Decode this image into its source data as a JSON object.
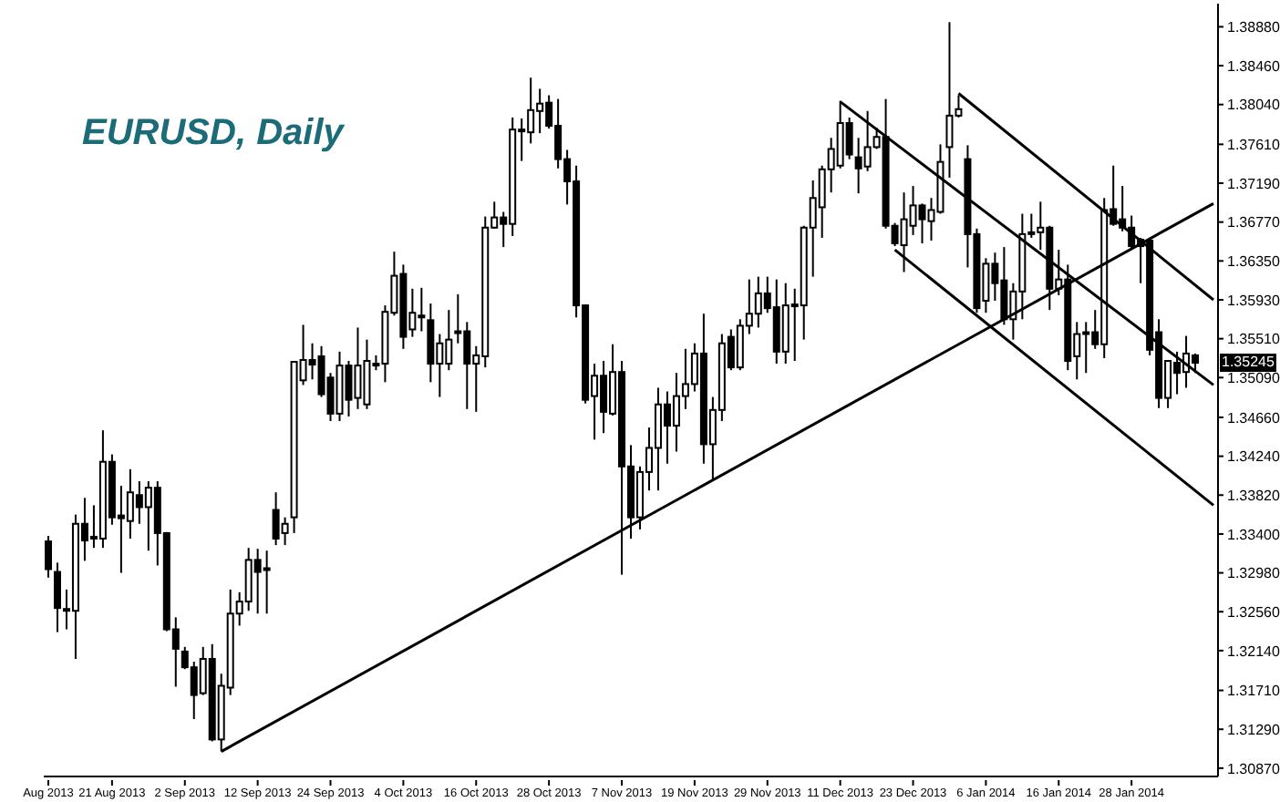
{
  "chart_data": {
    "type": "candlestick",
    "title": "EURUSD, Daily",
    "color": "#000000",
    "categories": [
      "Aug 2013",
      null,
      null,
      null,
      null,
      null,
      null,
      "21 Aug 2013",
      null,
      null,
      null,
      null,
      null,
      null,
      null,
      "2 Sep 2013",
      null,
      null,
      null,
      null,
      null,
      null,
      null,
      "12 Sep 2013",
      null,
      null,
      null,
      null,
      null,
      null,
      null,
      "24 Sep 2013",
      null,
      null,
      null,
      null,
      null,
      null,
      null,
      "4 Oct 2013",
      null,
      null,
      null,
      null,
      null,
      null,
      null,
      "16 Oct 2013",
      null,
      null,
      null,
      null,
      null,
      null,
      null,
      "28 Oct 2013",
      null,
      null,
      null,
      null,
      null,
      null,
      null,
      "7 Nov 2013",
      null,
      null,
      null,
      null,
      null,
      null,
      null,
      "19 Nov 2013",
      null,
      null,
      null,
      null,
      null,
      null,
      null,
      "29 Nov 2013",
      null,
      null,
      null,
      null,
      null,
      null,
      null,
      "11 Dec 2013",
      null,
      null,
      null,
      null,
      null,
      null,
      null,
      "23 Dec 2013",
      null,
      null,
      null,
      null,
      null,
      null,
      null,
      "6 Jan 2014",
      null,
      null,
      null,
      null,
      null,
      null,
      null,
      "16 Jan 2014",
      null,
      null,
      null,
      null,
      null,
      null,
      null,
      "28 Jan 2014",
      null,
      null,
      null,
      null,
      null,
      null,
      null,
      null,
      null
    ],
    "ohlc": [
      [
        1.3332,
        1.3338,
        1.3293,
        1.3302
      ],
      [
        1.3299,
        1.3309,
        1.3234,
        1.326
      ],
      [
        1.3259,
        1.328,
        1.3237,
        1.3257
      ],
      [
        1.3257,
        1.3361,
        1.3205,
        1.3351
      ],
      [
        1.3351,
        1.3379,
        1.3311,
        1.3333
      ],
      [
        1.3335,
        1.3371,
        1.3325,
        1.3337
      ],
      [
        1.3335,
        1.3452,
        1.3325,
        1.3418
      ],
      [
        1.3418,
        1.3426,
        1.335,
        1.3358
      ],
      [
        1.336,
        1.3392,
        1.3298,
        1.3357
      ],
      [
        1.3354,
        1.341,
        1.3335,
        1.3385
      ],
      [
        1.3382,
        1.3397,
        1.3351,
        1.3369
      ],
      [
        1.3369,
        1.3397,
        1.3322,
        1.339
      ],
      [
        1.339,
        1.3397,
        1.3306,
        1.3341
      ],
      [
        1.3341,
        1.3342,
        1.3235,
        1.3237
      ],
      [
        1.3237,
        1.325,
        1.3175,
        1.3216
      ],
      [
        1.3213,
        1.3218,
        1.3194,
        1.3196
      ],
      [
        1.3196,
        1.3202,
        1.314,
        1.3166
      ],
      [
        1.3168,
        1.3218,
        1.3166,
        1.3205
      ],
      [
        1.3205,
        1.3221,
        1.3116,
        1.3118
      ],
      [
        1.3118,
        1.3189,
        1.3105,
        1.3176
      ],
      [
        1.3174,
        1.328,
        1.3166,
        1.3254
      ],
      [
        1.3254,
        1.3277,
        1.3241,
        1.3267
      ],
      [
        1.3267,
        1.3325,
        1.3257,
        1.3312
      ],
      [
        1.3312,
        1.3324,
        1.3254,
        1.3299
      ],
      [
        1.3303,
        1.3322,
        1.3254,
        1.3302
      ],
      [
        1.3366,
        1.3385,
        1.3328,
        1.3335
      ],
      [
        1.3341,
        1.3358,
        1.3328,
        1.3351
      ],
      [
        1.3358,
        1.3527,
        1.3341,
        1.3526
      ],
      [
        1.3506,
        1.3566,
        1.3501,
        1.3528
      ],
      [
        1.3528,
        1.3546,
        1.3507,
        1.3523
      ],
      [
        1.3532,
        1.3543,
        1.3488,
        1.3491
      ],
      [
        1.3509,
        1.3514,
        1.3462,
        1.347
      ],
      [
        1.347,
        1.3537,
        1.3462,
        1.3522
      ],
      [
        1.3522,
        1.3527,
        1.3467,
        1.3485
      ],
      [
        1.3487,
        1.3563,
        1.3475,
        1.3522
      ],
      [
        1.348,
        1.355,
        1.3475,
        1.3527
      ],
      [
        1.3523,
        1.3533,
        1.3517,
        1.3524
      ],
      [
        1.3524,
        1.3587,
        1.3504,
        1.358
      ],
      [
        1.3579,
        1.3645,
        1.3576,
        1.3619
      ],
      [
        1.3621,
        1.3631,
        1.354,
        1.3553
      ],
      [
        1.3561,
        1.3605,
        1.3553,
        1.3579
      ],
      [
        1.3576,
        1.3606,
        1.3559,
        1.3575
      ],
      [
        1.3571,
        1.3589,
        1.3504,
        1.3524
      ],
      [
        1.3524,
        1.3556,
        1.3488,
        1.3546
      ],
      [
        1.3524,
        1.3582,
        1.3517,
        1.355
      ],
      [
        1.3558,
        1.3599,
        1.3546,
        1.3559
      ],
      [
        1.3559,
        1.3569,
        1.3475,
        1.3524
      ],
      [
        1.3524,
        1.3543,
        1.3472,
        1.3533
      ],
      [
        1.3532,
        1.3683,
        1.352,
        1.3671
      ],
      [
        1.3671,
        1.3699,
        1.367,
        1.3682
      ],
      [
        1.3682,
        1.3688,
        1.365,
        1.3675
      ],
      [
        1.3675,
        1.379,
        1.3662,
        1.3777
      ],
      [
        1.3776,
        1.3789,
        1.3743,
        1.3777
      ],
      [
        1.3774,
        1.3833,
        1.3762,
        1.3798
      ],
      [
        1.3797,
        1.3821,
        1.3773,
        1.3805
      ],
      [
        1.3806,
        1.3814,
        1.3778,
        1.3781
      ],
      [
        1.3781,
        1.381,
        1.3735,
        1.3745
      ],
      [
        1.3745,
        1.3755,
        1.3696,
        1.3721
      ],
      [
        1.3721,
        1.3738,
        1.3574,
        1.3587
      ],
      [
        1.3587,
        1.3588,
        1.3481,
        1.3485
      ],
      [
        1.3489,
        1.3524,
        1.3442,
        1.3511
      ],
      [
        1.3511,
        1.3527,
        1.3449,
        1.3472
      ],
      [
        1.347,
        1.3545,
        1.3468,
        1.3515
      ],
      [
        1.3515,
        1.3527,
        1.3296,
        1.3413
      ],
      [
        1.3413,
        1.3436,
        1.3335,
        1.3358
      ],
      [
        1.3358,
        1.3413,
        1.3345,
        1.3407
      ],
      [
        1.3407,
        1.3455,
        1.3387,
        1.3433
      ],
      [
        1.3433,
        1.3498,
        1.3387,
        1.348
      ],
      [
        1.348,
        1.3494,
        1.3416,
        1.3457
      ],
      [
        1.3457,
        1.3514,
        1.3429,
        1.3489
      ],
      [
        1.3489,
        1.354,
        1.3475,
        1.3502
      ],
      [
        1.3502,
        1.3546,
        1.3494,
        1.3535
      ],
      [
        1.3535,
        1.3578,
        1.3416,
        1.3437
      ],
      [
        1.3437,
        1.3488,
        1.3397,
        1.3474
      ],
      [
        1.3474,
        1.3556,
        1.3462,
        1.3546
      ],
      [
        1.3553,
        1.3561,
        1.3517,
        1.352
      ],
      [
        1.352,
        1.3572,
        1.3517,
        1.3565
      ],
      [
        1.3565,
        1.3615,
        1.3556,
        1.3578
      ],
      [
        1.3578,
        1.3618,
        1.3563,
        1.36
      ],
      [
        1.36,
        1.3618,
        1.3579,
        1.3584
      ],
      [
        1.3585,
        1.3615,
        1.3524,
        1.3537
      ],
      [
        1.3537,
        1.3611,
        1.3524,
        1.3587
      ],
      [
        1.3587,
        1.3605,
        1.3527,
        1.3588
      ],
      [
        1.3587,
        1.3673,
        1.355,
        1.3671
      ],
      [
        1.3671,
        1.3722,
        1.3618,
        1.3703
      ],
      [
        1.3693,
        1.3738,
        1.366,
        1.3734
      ],
      [
        1.3734,
        1.3768,
        1.3709,
        1.3756
      ],
      [
        1.3738,
        1.3808,
        1.3735,
        1.3784
      ],
      [
        1.3784,
        1.379,
        1.3745,
        1.375
      ],
      [
        1.3747,
        1.3768,
        1.3708,
        1.3735
      ],
      [
        1.3737,
        1.3797,
        1.3732,
        1.3758
      ],
      [
        1.3758,
        1.3779,
        1.3756,
        1.3769
      ],
      [
        1.3769,
        1.381,
        1.367,
        1.3673
      ],
      [
        1.3673,
        1.3676,
        1.3651,
        1.3654
      ],
      [
        1.3652,
        1.3709,
        1.3623,
        1.368
      ],
      [
        1.3673,
        1.3716,
        1.3663,
        1.3695
      ],
      [
        1.3695,
        1.3697,
        1.3654,
        1.368
      ],
      [
        1.3678,
        1.3703,
        1.3657,
        1.369
      ],
      [
        1.3688,
        1.3761,
        1.3686,
        1.3742
      ],
      [
        1.3758,
        1.3893,
        1.3725,
        1.3792
      ],
      [
        1.3792,
        1.3814,
        1.379,
        1.3799
      ],
      [
        1.3745,
        1.376,
        1.3628,
        1.3664
      ],
      [
        1.3664,
        1.367,
        1.3579,
        1.3584
      ],
      [
        1.3592,
        1.3638,
        1.3579,
        1.3632
      ],
      [
        1.3632,
        1.3644,
        1.3592,
        1.3611
      ],
      [
        1.3614,
        1.365,
        1.3566,
        1.3572
      ],
      [
        1.3572,
        1.3611,
        1.355,
        1.3602
      ],
      [
        1.3602,
        1.3686,
        1.3572,
        1.3664
      ],
      [
        1.3665,
        1.3686,
        1.366,
        1.3666
      ],
      [
        1.3666,
        1.3699,
        1.3647,
        1.3671
      ],
      [
        1.3671,
        1.3673,
        1.3582,
        1.3605
      ],
      [
        1.3605,
        1.3647,
        1.3598,
        1.3615
      ],
      [
        1.3615,
        1.3631,
        1.3517,
        1.3527
      ],
      [
        1.3532,
        1.3569,
        1.3507,
        1.3556
      ],
      [
        1.3557,
        1.3569,
        1.3514,
        1.3558
      ],
      [
        1.3558,
        1.3582,
        1.354,
        1.3545
      ],
      [
        1.3545,
        1.3703,
        1.353,
        1.369
      ],
      [
        1.3691,
        1.3738,
        1.3673,
        1.3675
      ],
      [
        1.368,
        1.3716,
        1.3667,
        1.3671
      ],
      [
        1.3671,
        1.3684,
        1.3647,
        1.3651
      ],
      [
        1.3658,
        1.366,
        1.3611,
        1.3651
      ],
      [
        1.3657,
        1.366,
        1.3533,
        1.3539
      ],
      [
        1.3558,
        1.3572,
        1.3476,
        1.3487
      ],
      [
        1.3487,
        1.3528,
        1.3476,
        1.3527
      ],
      [
        1.3525,
        1.3537,
        1.3491,
        1.3514
      ],
      [
        1.3515,
        1.3554,
        1.3498,
        1.3535
      ],
      [
        1.3533,
        1.3535,
        1.3514,
        1.3525
      ],
      null,
      null
    ],
    "series": [
      {
        "type": "line",
        "color": "#000000",
        "values": [
          null,
          null,
          null,
          null,
          null,
          null,
          null,
          null,
          null,
          null,
          null,
          null,
          null,
          null,
          null,
          null,
          null,
          null,
          null,
          1.3105,
          null,
          null,
          null,
          null,
          null,
          null,
          null,
          null,
          null,
          null,
          null,
          null,
          null,
          null,
          null,
          null,
          null,
          null,
          null,
          null,
          null,
          null,
          null,
          null,
          null,
          null,
          null,
          null,
          null,
          null,
          null,
          null,
          null,
          null,
          null,
          null,
          null,
          null,
          null,
          null,
          null,
          null,
          null,
          null,
          null,
          null,
          null,
          null,
          null,
          null,
          null,
          null,
          null,
          null,
          null,
          null,
          null,
          null,
          null,
          null,
          null,
          null,
          null,
          null,
          null,
          null,
          null,
          null,
          null,
          null,
          null,
          null,
          null,
          null,
          null,
          null,
          null,
          null,
          null,
          null,
          null,
          null,
          null,
          null,
          null,
          null,
          null,
          null,
          null,
          null,
          null,
          null,
          null,
          null,
          null,
          null,
          null,
          null,
          null,
          null,
          null,
          null,
          null,
          null,
          null,
          null,
          null,
          null,
          1.3697
        ]
      },
      {
        "type": "line",
        "color": "#000000",
        "values": [
          null,
          null,
          null,
          null,
          null,
          null,
          null,
          null,
          null,
          null,
          null,
          null,
          null,
          null,
          null,
          null,
          null,
          null,
          null,
          null,
          null,
          null,
          null,
          null,
          null,
          null,
          null,
          null,
          null,
          null,
          null,
          null,
          null,
          null,
          null,
          null,
          null,
          null,
          null,
          null,
          null,
          null,
          null,
          null,
          null,
          null,
          null,
          null,
          null,
          null,
          null,
          null,
          null,
          null,
          null,
          null,
          null,
          null,
          null,
          null,
          null,
          null,
          null,
          null,
          null,
          null,
          null,
          null,
          null,
          null,
          null,
          null,
          null,
          null,
          null,
          null,
          null,
          null,
          null,
          null,
          null,
          null,
          null,
          null,
          null,
          null,
          null,
          null,
          null,
          null,
          null,
          null,
          null,
          null,
          null,
          null,
          null,
          null,
          null,
          null,
          1.3816,
          null,
          null,
          null,
          null,
          null,
          null,
          null,
          null,
          null,
          null,
          null,
          null,
          null,
          null,
          null,
          null,
          null,
          null,
          null,
          null,
          null,
          null,
          null,
          null,
          null,
          null,
          null,
          1.3593
        ]
      },
      {
        "type": "line",
        "color": "#000000",
        "values": [
          null,
          null,
          null,
          null,
          null,
          null,
          null,
          null,
          null,
          null,
          null,
          null,
          null,
          null,
          null,
          null,
          null,
          null,
          null,
          null,
          null,
          null,
          null,
          null,
          null,
          null,
          null,
          null,
          null,
          null,
          null,
          null,
          null,
          null,
          null,
          null,
          null,
          null,
          null,
          null,
          null,
          null,
          null,
          null,
          null,
          null,
          null,
          null,
          null,
          null,
          null,
          null,
          null,
          null,
          null,
          null,
          null,
          null,
          null,
          null,
          null,
          null,
          null,
          null,
          null,
          null,
          null,
          null,
          null,
          null,
          null,
          null,
          null,
          null,
          null,
          null,
          null,
          null,
          null,
          null,
          null,
          null,
          null,
          null,
          null,
          null,
          null,
          1.3807,
          null,
          null,
          null,
          null,
          null,
          null,
          null,
          null,
          null,
          null,
          null,
          null,
          null,
          null,
          null,
          null,
          null,
          null,
          null,
          null,
          null,
          null,
          null,
          null,
          null,
          null,
          null,
          null,
          null,
          null,
          null,
          null,
          null,
          null,
          null,
          null,
          null,
          null,
          null,
          null,
          1.3501
        ]
      },
      {
        "type": "line",
        "color": "#000000",
        "values": [
          null,
          null,
          null,
          null,
          null,
          null,
          null,
          null,
          null,
          null,
          null,
          null,
          null,
          null,
          null,
          null,
          null,
          null,
          null,
          null,
          null,
          null,
          null,
          null,
          null,
          null,
          null,
          null,
          null,
          null,
          null,
          null,
          null,
          null,
          null,
          null,
          null,
          null,
          null,
          null,
          null,
          null,
          null,
          null,
          null,
          null,
          null,
          null,
          null,
          null,
          null,
          null,
          null,
          null,
          null,
          null,
          null,
          null,
          null,
          null,
          null,
          null,
          null,
          null,
          null,
          null,
          null,
          null,
          null,
          null,
          null,
          null,
          null,
          null,
          null,
          null,
          null,
          null,
          null,
          null,
          null,
          null,
          null,
          null,
          null,
          null,
          null,
          null,
          null,
          null,
          null,
          null,
          null,
          1.3647,
          null,
          null,
          null,
          null,
          null,
          null,
          null,
          null,
          null,
          null,
          null,
          null,
          null,
          null,
          null,
          null,
          null,
          null,
          null,
          null,
          null,
          null,
          null,
          null,
          null,
          null,
          null,
          null,
          null,
          null,
          null,
          null,
          null,
          null,
          1.3371
        ]
      }
    ],
    "ylim": [
      1.3078,
      1.3913
    ],
    "yticks": [
      {
        "value": 1.3888,
        "label": "1.38880"
      },
      {
        "value": 1.3846,
        "label": "1.38460"
      },
      {
        "value": 1.3804,
        "label": "1.38040"
      },
      {
        "value": 1.3761,
        "label": "1.37610"
      },
      {
        "value": 1.3719,
        "label": "1.37190"
      },
      {
        "value": 1.3677,
        "label": "1.36770"
      },
      {
        "value": 1.3635,
        "label": "1.36350"
      },
      {
        "value": 1.3593,
        "label": "1.35930"
      },
      {
        "value": 1.3551,
        "label": "1.35510"
      },
      {
        "value": 1.3509,
        "label": "1.35090"
      },
      {
        "value": 1.3466,
        "label": "1.34660"
      },
      {
        "value": 1.3424,
        "label": "1.34240"
      },
      {
        "value": 1.3382,
        "label": "1.33820"
      },
      {
        "value": 1.334,
        "label": "1.33400"
      },
      {
        "value": 1.3298,
        "label": "1.32980"
      },
      {
        "value": 1.3256,
        "label": "1.32560"
      },
      {
        "value": 1.3214,
        "label": "1.32140"
      },
      {
        "value": 1.3171,
        "label": "1.31710"
      },
      {
        "value": 1.3129,
        "label": "1.31290"
      },
      {
        "value": 1.3087,
        "label": "1.30870"
      }
    ],
    "annotations": [
      {
        "text": "1.35245",
        "y": 1.35245
      }
    ]
  }
}
